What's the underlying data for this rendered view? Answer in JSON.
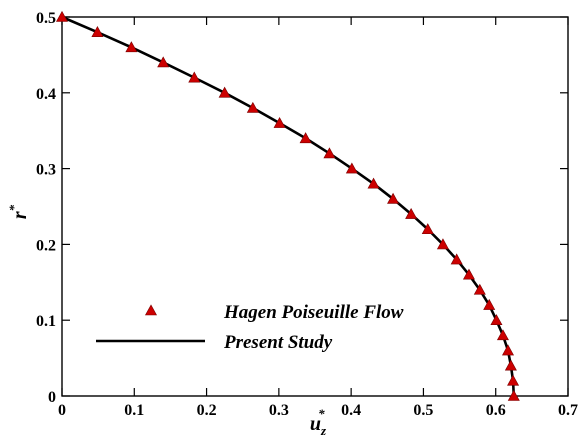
{
  "chart_data": {
    "type": "line",
    "title": "",
    "xlabel": {
      "base": "u",
      "sub": "z",
      "sup": "*"
    },
    "ylabel": {
      "base": "r",
      "sup": "*"
    },
    "xlim": [
      0,
      0.7
    ],
    "ylim": [
      0,
      0.5
    ],
    "xticks": [
      "0",
      "0.1",
      "0.2",
      "0.3",
      "0.4",
      "0.5",
      "0.6",
      "0.7"
    ],
    "yticks": [
      "0",
      "0.1",
      "0.2",
      "0.3",
      "0.4",
      "0.5"
    ],
    "grid": false,
    "legend_position": "bottom-left",
    "series": [
      {
        "name": "Hagen Poiseuille Flow",
        "style": "marker",
        "marker": "triangle",
        "color": "#cc0000",
        "x": [
          0.0,
          0.049,
          0.096,
          0.14,
          0.183,
          0.225,
          0.264,
          0.301,
          0.337,
          0.37,
          0.401,
          0.431,
          0.458,
          0.483,
          0.506,
          0.527,
          0.546,
          0.563,
          0.578,
          0.591,
          0.601,
          0.61,
          0.617,
          0.621,
          0.624,
          0.625
        ],
        "y": [
          0.5,
          0.48,
          0.46,
          0.44,
          0.42,
          0.4,
          0.38,
          0.36,
          0.34,
          0.32,
          0.3,
          0.28,
          0.26,
          0.24,
          0.22,
          0.2,
          0.18,
          0.16,
          0.14,
          0.12,
          0.1,
          0.08,
          0.06,
          0.04,
          0.02,
          0.0
        ]
      },
      {
        "name": "Present Study",
        "style": "line",
        "color": "#000000",
        "x": [
          0.0,
          0.049,
          0.096,
          0.14,
          0.183,
          0.225,
          0.264,
          0.301,
          0.337,
          0.37,
          0.401,
          0.431,
          0.458,
          0.483,
          0.506,
          0.527,
          0.546,
          0.563,
          0.578,
          0.591,
          0.601,
          0.61,
          0.617,
          0.621,
          0.624,
          0.625
        ],
        "y": [
          0.5,
          0.48,
          0.46,
          0.44,
          0.42,
          0.4,
          0.38,
          0.36,
          0.34,
          0.32,
          0.3,
          0.28,
          0.26,
          0.24,
          0.22,
          0.2,
          0.18,
          0.16,
          0.14,
          0.12,
          0.1,
          0.08,
          0.06,
          0.04,
          0.02,
          0.0
        ]
      }
    ]
  }
}
